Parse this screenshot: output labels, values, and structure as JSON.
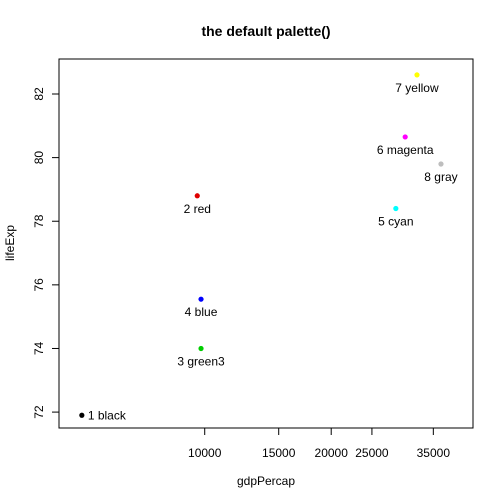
{
  "chart_data": {
    "type": "scatter",
    "title": "the default palette()",
    "xlabel": "gdpPercap",
    "ylabel": "lifeExp",
    "x_scale": "log",
    "xlim": [
      4500,
      43500
    ],
    "ylim": [
      71.5,
      83.1
    ],
    "x_ticks": [
      10000,
      15000,
      20000,
      25000,
      35000
    ],
    "x_tick_labels": [
      "10000",
      "15000",
      "20000",
      "25000",
      "35000"
    ],
    "y_ticks": [
      72,
      74,
      76,
      78,
      80,
      82
    ],
    "y_tick_labels": [
      "72",
      "74",
      "76",
      "78",
      "80",
      "82"
    ],
    "grid": false,
    "legend": "none",
    "points": [
      {
        "label": "1 black",
        "x": 5100,
        "y": 71.9,
        "color": "#000000",
        "label_pos": "right"
      },
      {
        "label": "2 red",
        "x": 9600,
        "y": 78.8,
        "color": "#df0000",
        "label_pos": "below"
      },
      {
        "label": "3 green3",
        "x": 9800,
        "y": 74.0,
        "color": "#00cd00",
        "label_pos": "below"
      },
      {
        "label": "4 blue",
        "x": 9800,
        "y": 75.55,
        "color": "#0000ff",
        "label_pos": "below"
      },
      {
        "label": "5 cyan",
        "x": 28500,
        "y": 78.4,
        "color": "#00ffff",
        "label_pos": "below"
      },
      {
        "label": "6 magenta",
        "x": 30000,
        "y": 80.65,
        "color": "#ff00ff",
        "label_pos": "below"
      },
      {
        "label": "7 yellow",
        "x": 32000,
        "y": 82.6,
        "color": "#ffff00",
        "label_pos": "below"
      },
      {
        "label": "8 gray",
        "x": 36500,
        "y": 79.8,
        "color": "#bebebe",
        "label_pos": "below"
      }
    ]
  }
}
